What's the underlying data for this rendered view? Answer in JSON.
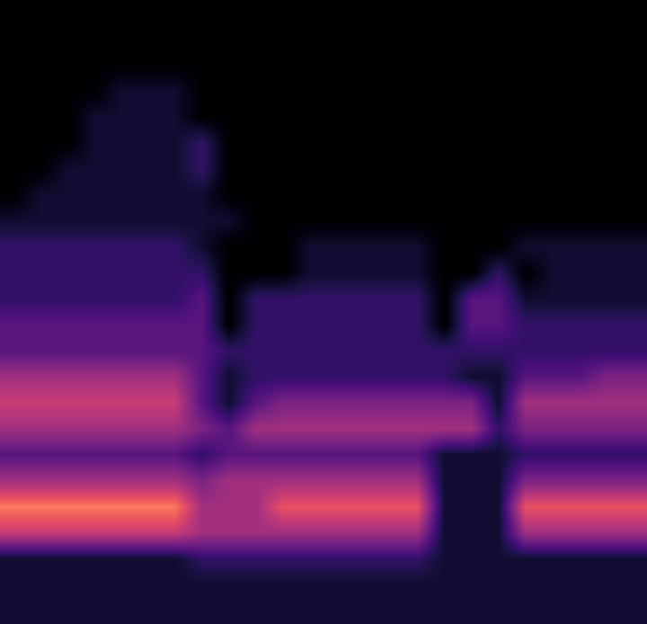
{
  "chart_data": {
    "type": "heatmap",
    "tick_labels": false,
    "cells": [
      [
        0,
        0,
        0,
        0,
        0,
        0,
        0,
        0,
        0,
        0,
        0,
        0,
        0,
        0,
        0,
        0,
        0,
        0,
        0,
        0,
        0,
        0,
        0,
        0
      ],
      [
        0,
        0,
        0,
        0,
        0,
        0,
        0,
        0,
        0,
        0,
        0,
        0,
        0,
        0,
        0,
        0,
        0,
        0,
        0,
        0,
        0,
        0,
        0,
        0
      ],
      [
        0,
        0,
        0,
        0,
        0,
        0,
        0,
        0,
        0,
        0,
        0,
        0,
        0,
        0,
        0,
        0,
        0,
        0,
        0,
        0,
        0,
        0,
        0,
        0
      ],
      [
        0,
        0,
        0,
        0,
        1,
        1,
        1,
        0,
        0,
        0,
        0,
        0,
        0,
        0,
        0,
        0,
        0,
        0,
        0,
        0,
        0,
        0,
        0,
        0
      ],
      [
        0,
        0,
        0,
        1,
        1,
        1,
        1,
        0,
        0,
        0,
        0,
        0,
        0,
        0,
        0,
        0,
        0,
        0,
        0,
        0,
        0,
        0,
        0,
        0
      ],
      [
        0,
        0,
        0,
        1,
        1,
        1,
        1,
        2,
        0,
        0,
        0,
        0,
        0,
        0,
        0,
        0,
        0,
        0,
        0,
        0,
        0,
        0,
        0,
        0
      ],
      [
        0,
        0,
        1,
        1,
        1,
        1,
        1,
        2,
        0,
        0,
        0,
        0,
        0,
        0,
        0,
        0,
        0,
        0,
        0,
        0,
        0,
        0,
        0,
        0
      ],
      [
        0,
        1,
        1,
        1,
        1,
        1,
        1,
        1,
        0,
        0,
        0,
        0,
        0,
        0,
        0,
        0,
        0,
        0,
        0,
        0,
        0,
        0,
        0,
        0
      ],
      [
        1,
        1,
        1,
        1,
        1,
        1,
        1,
        1,
        1,
        0,
        0,
        0,
        0,
        0,
        0,
        0,
        0,
        0,
        0,
        0,
        0,
        0,
        0,
        0
      ],
      [
        2,
        2,
        2,
        2,
        2,
        2,
        2,
        1,
        0,
        0,
        0,
        1,
        1,
        1,
        1,
        1,
        0,
        0,
        0,
        1,
        1,
        1,
        1,
        1
      ],
      [
        2,
        2,
        2,
        2,
        2,
        2,
        2,
        2,
        0,
        0,
        0,
        1,
        1,
        1,
        1,
        1,
        0,
        0,
        2,
        0,
        1,
        1,
        1,
        1
      ],
      [
        2,
        2,
        2,
        2,
        2,
        2,
        2,
        3,
        0,
        2,
        2,
        2,
        2,
        2,
        2,
        2,
        0,
        3,
        3,
        1,
        1,
        1,
        1,
        1
      ],
      [
        3,
        3,
        3,
        3,
        3,
        3,
        3,
        3,
        0,
        2,
        2,
        2,
        2,
        2,
        2,
        2,
        0,
        3,
        3,
        2,
        2,
        2,
        2,
        2
      ],
      [
        3,
        3,
        3,
        3,
        3,
        3,
        3,
        3,
        2,
        2,
        2,
        2,
        2,
        2,
        2,
        2,
        2,
        2,
        2,
        2,
        2,
        2,
        2,
        2
      ],
      [
        5,
        5,
        5,
        5,
        5,
        5,
        5,
        3,
        1,
        2,
        2,
        2,
        2,
        2,
        2,
        2,
        2,
        1,
        1,
        3,
        3,
        3,
        4,
        4
      ],
      [
        6,
        6,
        6,
        6,
        6,
        6,
        6,
        3,
        1,
        3,
        4,
        4,
        4,
        4,
        4,
        4,
        4,
        4,
        1,
        5,
        5,
        5,
        5,
        5
      ],
      [
        5,
        5,
        5,
        5,
        5,
        5,
        5,
        4,
        3,
        5,
        5,
        5,
        5,
        5,
        5,
        5,
        5,
        5,
        2,
        4,
        4,
        4,
        4,
        4
      ],
      [
        3,
        3,
        3,
        3,
        3,
        3,
        3,
        2,
        3,
        3,
        3,
        3,
        3,
        3,
        3,
        3,
        1,
        1,
        1,
        2,
        2,
        2,
        2,
        2
      ],
      [
        5,
        5,
        5,
        5,
        5,
        5,
        5,
        4,
        5,
        5,
        5,
        5,
        5,
        5,
        5,
        5,
        1,
        1,
        1,
        4,
        4,
        4,
        4,
        4
      ],
      [
        8,
        8,
        8,
        8,
        8,
        8,
        8,
        5,
        5,
        5,
        7,
        7,
        7,
        7,
        7,
        7,
        1,
        1,
        1,
        7,
        7,
        7,
        7,
        7
      ],
      [
        6,
        6,
        6,
        6,
        6,
        6,
        6,
        5,
        5,
        5,
        5,
        5,
        5,
        5,
        5,
        5,
        1,
        1,
        1,
        5,
        5,
        5,
        5,
        5
      ],
      [
        1,
        1,
        1,
        1,
        1,
        1,
        1,
        2,
        2,
        2,
        2,
        2,
        2,
        2,
        2,
        2,
        1,
        1,
        1,
        1,
        1,
        1,
        1,
        1
      ],
      [
        1,
        1,
        1,
        1,
        1,
        1,
        1,
        1,
        1,
        1,
        1,
        1,
        1,
        1,
        1,
        1,
        1,
        1,
        1,
        1,
        1,
        1,
        1,
        1
      ],
      [
        1,
        1,
        1,
        1,
        1,
        1,
        1,
        1,
        1,
        1,
        1,
        1,
        1,
        1,
        1,
        1,
        1,
        1,
        1,
        1,
        1,
        1,
        1,
        1
      ]
    ]
  }
}
